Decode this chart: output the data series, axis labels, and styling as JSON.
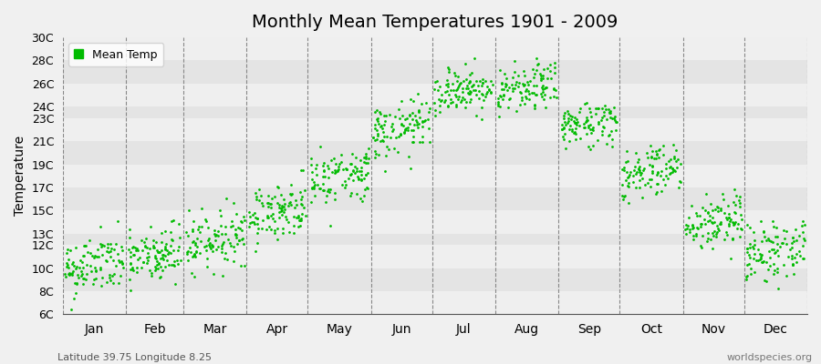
{
  "title": "Monthly Mean Temperatures 1901 - 2009",
  "ylabel": "Temperature",
  "xlabel_bottom_left": "Latitude 39.75 Longitude 8.25",
  "xlabel_bottom_right": "worldspecies.org",
  "legend_label": "Mean Temp",
  "dot_color": "#00BB00",
  "background_color": "#F0F0F0",
  "plot_bg_light": "#EFEFEF",
  "plot_bg_dark": "#E4E4E4",
  "ytick_labels": [
    "6C",
    "8C",
    "10C",
    "12C",
    "13C",
    "15C",
    "17C",
    "19C",
    "21C",
    "23C",
    "24C",
    "26C",
    "28C",
    "30C"
  ],
  "ytick_values": [
    6,
    8,
    10,
    12,
    13,
    15,
    17,
    19,
    21,
    23,
    24,
    26,
    28,
    30
  ],
  "ylim": [
    6,
    30
  ],
  "months": [
    "Jan",
    "Feb",
    "Mar",
    "Apr",
    "May",
    "Jun",
    "Jul",
    "Aug",
    "Sep",
    "Oct",
    "Nov",
    "Dec"
  ],
  "month_means": [
    10.2,
    11.0,
    12.5,
    15.0,
    18.0,
    22.0,
    25.5,
    25.5,
    22.5,
    18.5,
    14.0,
    11.5
  ],
  "month_stds": [
    1.3,
    1.3,
    1.2,
    1.2,
    1.2,
    1.2,
    1.0,
    1.0,
    1.0,
    1.2,
    1.2,
    1.3
  ],
  "n_years": 109,
  "seed": 42
}
